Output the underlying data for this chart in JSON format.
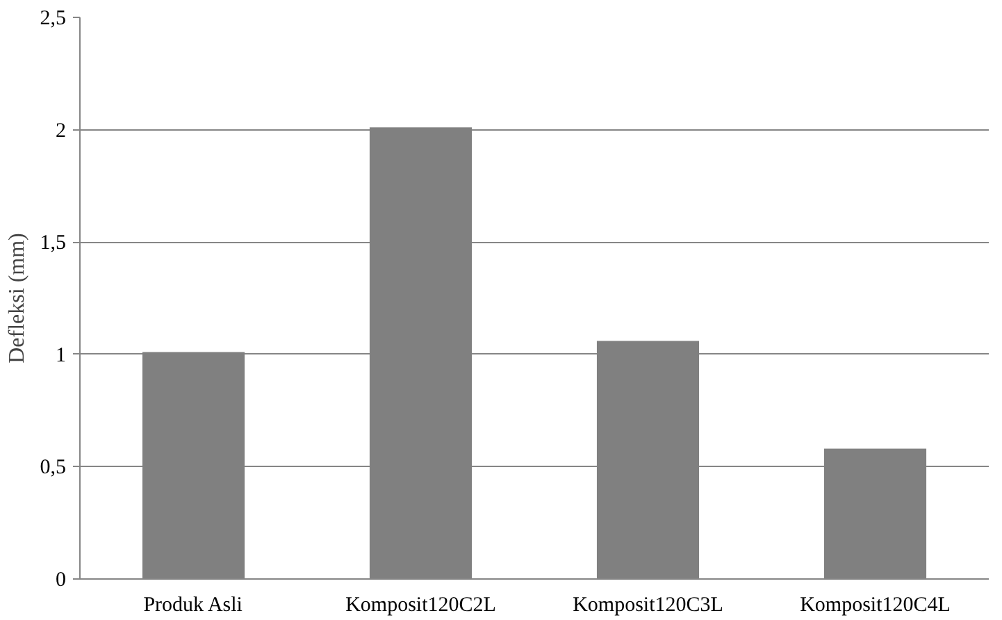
{
  "chart_data": {
    "type": "bar",
    "ylabel": "Defleksi (mm)",
    "categories": [
      "Produk Asli",
      "Komposit120C2L",
      "Komposit120C3L",
      "Komposit120C4L"
    ],
    "values": [
      1.01,
      2.01,
      1.06,
      0.58
    ],
    "color": "#808080",
    "ylim": [
      0,
      2.5
    ],
    "yticks": [
      0,
      {
        "value": 0.5,
        "label": "0,5"
      },
      1,
      {
        "value": 1.5,
        "label": "1,5"
      },
      2,
      {
        "value": 2.5,
        "label": "2,5"
      }
    ],
    "grid": "y"
  }
}
